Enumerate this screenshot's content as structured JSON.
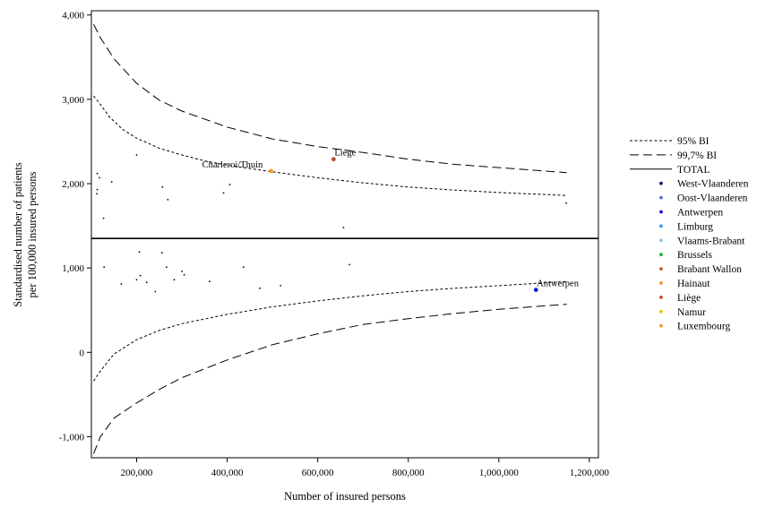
{
  "chart_data": {
    "type": "scatter",
    "title": "",
    "xlabel": "Number of insured persons",
    "ylabel_lines": [
      "Standardised number of patients",
      "per 100,000 insured persons"
    ],
    "xlim": [
      100000,
      1220000
    ],
    "ylim": [
      -1250,
      4050
    ],
    "x_ticks": [
      {
        "value": 200000,
        "label": "200,000"
      },
      {
        "value": 400000,
        "label": "400,000"
      },
      {
        "value": 600000,
        "label": "600,000"
      },
      {
        "value": 800000,
        "label": "800,000"
      },
      {
        "value": 1000000,
        "label": "1,000,000"
      },
      {
        "value": 1200000,
        "label": "1,200,000"
      }
    ],
    "y_ticks": [
      {
        "value": 4000,
        "label": "4,000"
      },
      {
        "value": 3000,
        "label": "3,000"
      },
      {
        "value": 2000,
        "label": "2,000"
      },
      {
        "value": 1000,
        "label": "1,000"
      },
      {
        "value": 0,
        "label": "0"
      },
      {
        "value": -1000,
        "label": "-1,000"
      }
    ],
    "grid": false,
    "legend_position": "right",
    "total_value": 1350,
    "lines": [
      {
        "name": "95% BI",
        "style": "short-dash",
        "upper": [
          [
            105000,
            3040
          ],
          [
            120000,
            2940
          ],
          [
            140000,
            2790
          ],
          [
            170000,
            2640
          ],
          [
            200000,
            2540
          ],
          [
            250000,
            2420
          ],
          [
            300000,
            2340
          ],
          [
            350000,
            2270
          ],
          [
            400000,
            2220
          ],
          [
            500000,
            2140
          ],
          [
            600000,
            2070
          ],
          [
            700000,
            2010
          ],
          [
            800000,
            1960
          ],
          [
            900000,
            1925
          ],
          [
            1000000,
            1895
          ],
          [
            1150000,
            1860
          ]
        ],
        "lower": [
          [
            105000,
            -340
          ],
          [
            120000,
            -220
          ],
          [
            150000,
            -20
          ],
          [
            200000,
            150
          ],
          [
            250000,
            260
          ],
          [
            300000,
            340
          ],
          [
            400000,
            450
          ],
          [
            500000,
            540
          ],
          [
            600000,
            610
          ],
          [
            700000,
            670
          ],
          [
            800000,
            720
          ],
          [
            900000,
            760
          ],
          [
            1000000,
            790
          ],
          [
            1150000,
            840
          ]
        ]
      },
      {
        "name": "99,7% BI",
        "style": "long-dash",
        "upper": [
          [
            105000,
            3890
          ],
          [
            120000,
            3730
          ],
          [
            150000,
            3480
          ],
          [
            200000,
            3190
          ],
          [
            250000,
            2990
          ],
          [
            300000,
            2860
          ],
          [
            400000,
            2670
          ],
          [
            500000,
            2530
          ],
          [
            600000,
            2440
          ],
          [
            700000,
            2370
          ],
          [
            800000,
            2290
          ],
          [
            900000,
            2230
          ],
          [
            1000000,
            2190
          ],
          [
            1150000,
            2130
          ]
        ],
        "lower": [
          [
            105000,
            -1200
          ],
          [
            120000,
            -1000
          ],
          [
            150000,
            -780
          ],
          [
            200000,
            -600
          ],
          [
            250000,
            -440
          ],
          [
            300000,
            -300
          ],
          [
            400000,
            -90
          ],
          [
            500000,
            90
          ],
          [
            600000,
            220
          ],
          [
            700000,
            330
          ],
          [
            800000,
            400
          ],
          [
            900000,
            460
          ],
          [
            1000000,
            510
          ],
          [
            1150000,
            570
          ]
        ]
      }
    ],
    "points": [
      {
        "x": 113000,
        "y": 2120
      },
      {
        "x": 118000,
        "y": 2070
      },
      {
        "x": 113000,
        "y": 1930
      },
      {
        "x": 112000,
        "y": 1880
      },
      {
        "x": 145000,
        "y": 2020
      },
      {
        "x": 127000,
        "y": 1590
      },
      {
        "x": 200000,
        "y": 2340
      },
      {
        "x": 257000,
        "y": 1960
      },
      {
        "x": 269000,
        "y": 1810
      },
      {
        "x": 392000,
        "y": 1890
      },
      {
        "x": 406000,
        "y": 1990
      },
      {
        "x": 657000,
        "y": 1480
      },
      {
        "x": 1149000,
        "y": 1770
      },
      {
        "x": 128000,
        "y": 1010
      },
      {
        "x": 166000,
        "y": 810
      },
      {
        "x": 200000,
        "y": 860
      },
      {
        "x": 206000,
        "y": 1190
      },
      {
        "x": 208000,
        "y": 910
      },
      {
        "x": 222000,
        "y": 830
      },
      {
        "x": 241000,
        "y": 720
      },
      {
        "x": 256000,
        "y": 1180
      },
      {
        "x": 266000,
        "y": 1010
      },
      {
        "x": 283000,
        "y": 860
      },
      {
        "x": 300000,
        "y": 960
      },
      {
        "x": 305000,
        "y": 920
      },
      {
        "x": 361000,
        "y": 840
      },
      {
        "x": 436000,
        "y": 1010
      },
      {
        "x": 472000,
        "y": 760
      },
      {
        "x": 518000,
        "y": 790
      },
      {
        "x": 670000,
        "y": 1040
      },
      {
        "x": 497000,
        "y": 2150,
        "color": "#ff9a1a",
        "label": "Charleroi/Thuin"
      },
      {
        "x": 635000,
        "y": 2290,
        "color": "#b5512b",
        "label": "Liège"
      },
      {
        "x": 1082000,
        "y": 740,
        "color": "#1a1acc",
        "label": "Antwerpen"
      }
    ],
    "legend": [
      {
        "label": "95% BI",
        "kind": "short-dash"
      },
      {
        "label": "99,7% BI",
        "kind": "long-dash"
      },
      {
        "label": "TOTAL",
        "kind": "solid"
      },
      {
        "label": "West-Vlaanderen",
        "kind": "dot",
        "color": "#0a1a7a"
      },
      {
        "label": "Oost-Vlaanderen",
        "kind": "dot",
        "color": "#4e74d8"
      },
      {
        "label": "Antwerpen",
        "kind": "dot",
        "color": "#1a1acc"
      },
      {
        "label": "Limburg",
        "kind": "dot",
        "color": "#3a8ee6"
      },
      {
        "label": "Vlaams-Brabant",
        "kind": "dot",
        "color": "#7fc4f0"
      },
      {
        "label": "Brussels",
        "kind": "dot",
        "color": "#2eaa3a"
      },
      {
        "label": "Brabant Wallon",
        "kind": "dot",
        "color": "#cc5a2a"
      },
      {
        "label": "Hainaut",
        "kind": "dot",
        "color": "#ff8a1a"
      },
      {
        "label": "Liège",
        "kind": "dot",
        "color": "#b5512b"
      },
      {
        "label": "Namur",
        "kind": "dot",
        "color": "#f5c400"
      },
      {
        "label": "Luxembourg",
        "kind": "dot",
        "color": "#f0a030"
      }
    ]
  }
}
